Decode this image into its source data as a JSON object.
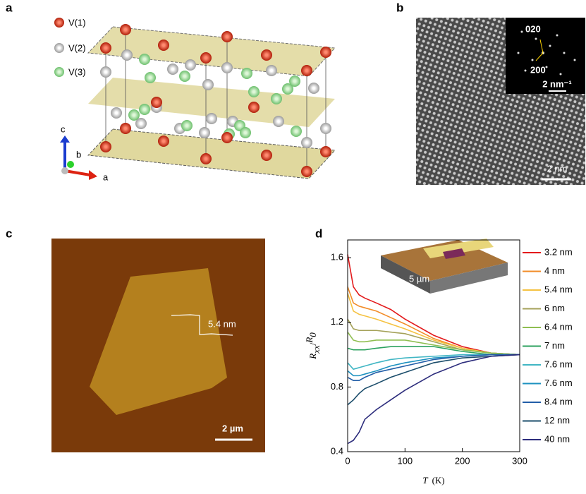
{
  "panel_a": {
    "label": "a",
    "legend": [
      "V(1)",
      "V(2)",
      "V(3)"
    ],
    "axes": [
      "c",
      "b",
      "a"
    ]
  },
  "panel_b": {
    "label": "b",
    "inset_labels": [
      "020",
      "200"
    ],
    "inset_scale": "2 nm⁻¹",
    "scale": "2 nm"
  },
  "panel_c": {
    "label": "c",
    "step": "5.4 nm",
    "scale": "2 µm"
  },
  "panel_d": {
    "label": "d",
    "inset_scale": "5 µm"
  },
  "chart_data": {
    "type": "line",
    "x_label": [
      "T",
      "(K)"
    ],
    "y_label": [
      "R",
      "xx",
      "/",
      "R",
      "0"
    ],
    "x": [
      0,
      10,
      20,
      30,
      50,
      75,
      100,
      150,
      200,
      250,
      300
    ],
    "xlim": [
      0,
      300
    ],
    "xticks": [
      0,
      100,
      200,
      300
    ],
    "ylim": [
      0.4,
      1.71
    ],
    "yticks": [
      {
        "value": 0.4,
        "label": "0.4"
      },
      {
        "value": 0.8,
        "label": "0.8"
      },
      {
        "value": 1.2,
        "label": "1.2"
      },
      {
        "value": 1.6,
        "label": "1.6"
      }
    ],
    "legend_position": "right",
    "series": [
      {
        "name": "3.2 nm",
        "color": "#e31a1c",
        "values": [
          1.62,
          1.42,
          1.37,
          1.35,
          1.32,
          1.28,
          1.22,
          1.12,
          1.05,
          1.01,
          1.0
        ]
      },
      {
        "name": "4   nm",
        "color": "#f28c28",
        "values": [
          1.42,
          1.32,
          1.3,
          1.29,
          1.27,
          1.23,
          1.19,
          1.1,
          1.04,
          1.01,
          1.0
        ]
      },
      {
        "name": "5.4 nm",
        "color": "#f5c242",
        "values": [
          1.38,
          1.27,
          1.25,
          1.24,
          1.22,
          1.19,
          1.16,
          1.09,
          1.04,
          1.01,
          1.0
        ]
      },
      {
        "name": "6   nm",
        "color": "#a5a25a",
        "values": [
          1.22,
          1.16,
          1.15,
          1.15,
          1.15,
          1.14,
          1.13,
          1.08,
          1.03,
          1.01,
          1.0
        ]
      },
      {
        "name": "6.4 nm",
        "color": "#8fbe50",
        "values": [
          1.14,
          1.09,
          1.08,
          1.08,
          1.09,
          1.09,
          1.09,
          1.06,
          1.03,
          1.01,
          1.0
        ]
      },
      {
        "name": "7   nm",
        "color": "#2ca25f",
        "values": [
          1.04,
          1.03,
          1.03,
          1.03,
          1.04,
          1.05,
          1.05,
          1.05,
          1.02,
          1.0,
          1.0
        ]
      },
      {
        "name": "7.6 nm",
        "color": "#41b6c4",
        "values": [
          0.95,
          0.91,
          0.92,
          0.93,
          0.95,
          0.97,
          0.98,
          0.99,
          1.0,
          1.0,
          1.0
        ]
      },
      {
        "name": "7.6 nm",
        "color": "#1d91c0",
        "values": [
          0.9,
          0.87,
          0.87,
          0.88,
          0.9,
          0.93,
          0.95,
          0.98,
          0.99,
          1.0,
          1.0
        ]
      },
      {
        "name": "8.4 nm",
        "color": "#225ea8",
        "values": [
          0.86,
          0.84,
          0.84,
          0.86,
          0.89,
          0.91,
          0.93,
          0.97,
          0.99,
          1.0,
          1.0
        ]
      },
      {
        "name": "12  nm",
        "color": "#1b4d6b",
        "values": [
          0.69,
          0.72,
          0.76,
          0.79,
          0.82,
          0.86,
          0.89,
          0.95,
          0.98,
          0.99,
          1.0
        ]
      },
      {
        "name": "40  nm",
        "color": "#2c2c7c",
        "values": [
          0.45,
          0.47,
          0.52,
          0.6,
          0.66,
          0.72,
          0.78,
          0.88,
          0.95,
          0.99,
          1.0
        ]
      }
    ]
  }
}
